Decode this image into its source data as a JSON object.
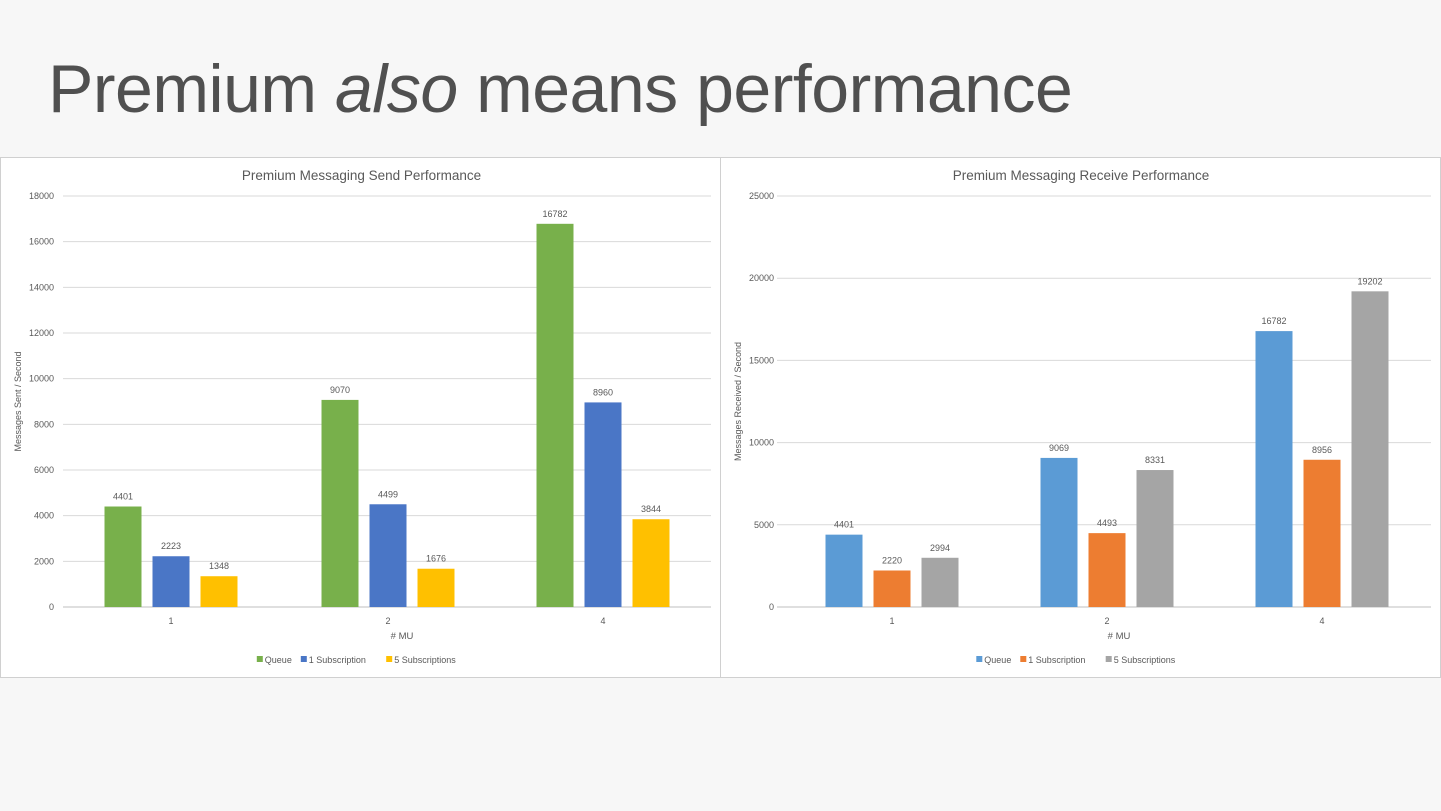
{
  "slide": {
    "title_part1": "Premium ",
    "title_emphasis": "also",
    "title_part2": " means performance"
  },
  "chart_data": [
    {
      "type": "bar",
      "title": "Premium Messaging Send Performance",
      "xlabel": "# MU",
      "ylabel": "Messages Sent / Second",
      "categories": [
        "1",
        "2",
        "4"
      ],
      "ylim": [
        0,
        18000
      ],
      "yticks": [
        0,
        2000,
        4000,
        6000,
        8000,
        10000,
        12000,
        14000,
        16000,
        18000
      ],
      "grid": true,
      "legend_position": "bottom",
      "series": [
        {
          "name": "Queue",
          "color": "#78b04b",
          "values": [
            4401,
            9070,
            16782
          ]
        },
        {
          "name": "1 Subscription",
          "color": "#4a76c6",
          "values": [
            2223,
            4499,
            8960
          ]
        },
        {
          "name": "5 Subscriptions",
          "color": "#ffc000",
          "values": [
            1348,
            1676,
            3844
          ]
        }
      ]
    },
    {
      "type": "bar",
      "title": "Premium Messaging Receive Performance",
      "xlabel": "# MU",
      "ylabel": "Messages Received / Second",
      "categories": [
        "1",
        "2",
        "4"
      ],
      "ylim": [
        0,
        25000
      ],
      "yticks": [
        0,
        5000,
        10000,
        15000,
        20000,
        25000
      ],
      "grid": true,
      "legend_position": "bottom",
      "series": [
        {
          "name": "Queue",
          "color": "#5b9bd5",
          "values": [
            4401,
            9069,
            16782
          ]
        },
        {
          "name": "1 Subscription",
          "color": "#ed7d31",
          "values": [
            2220,
            4493,
            8956
          ]
        },
        {
          "name": "5 Subscriptions",
          "color": "#a5a5a5",
          "values": [
            2994,
            8331,
            19202
          ]
        }
      ]
    }
  ]
}
